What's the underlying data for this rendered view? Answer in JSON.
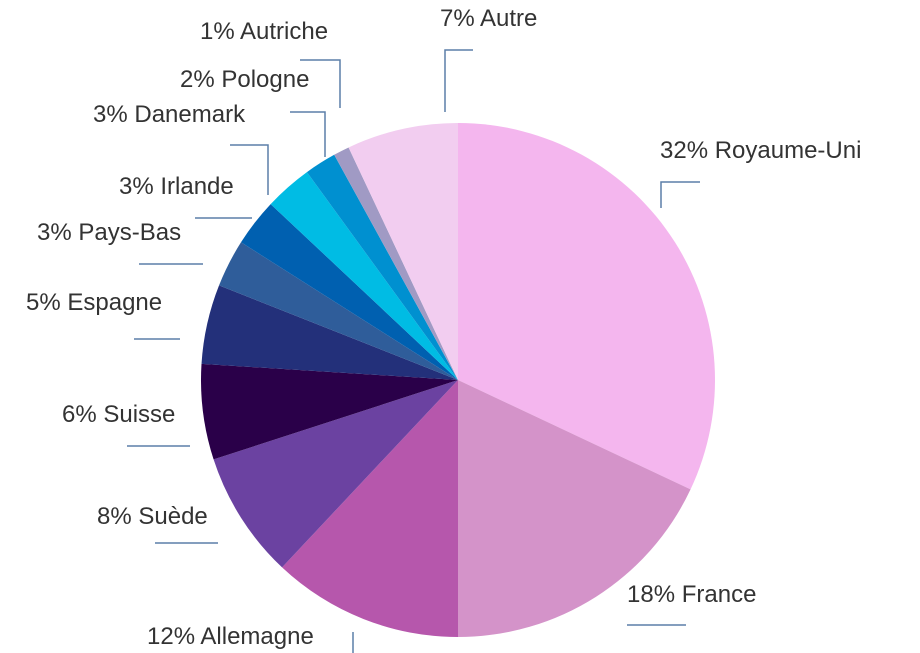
{
  "chart_data": {
    "type": "pie",
    "categories": [
      "Royaume-Uni",
      "France",
      "Allemagne",
      "Suède",
      "Suisse",
      "Espagne",
      "Pays-Bas",
      "Irlande",
      "Danemark",
      "Pologne",
      "Autriche",
      "Autre"
    ],
    "values": [
      32,
      18,
      12,
      8,
      6,
      5,
      3,
      3,
      3,
      2,
      1,
      7
    ],
    "value_labels": [
      "32%",
      "18%",
      "12%",
      "8%",
      "6%",
      "5%",
      "3%",
      "3%",
      "3%",
      "2%",
      "1%",
      "7%"
    ],
    "colors": [
      "#f4b6ee",
      "#d493c9",
      "#b657ac",
      "#6b42a1",
      "#2a0049",
      "#23307a",
      "#2f5d9a",
      "#0060b0",
      "#00bce4",
      "#0090d0",
      "#a09ac4",
      "#f2cdf0"
    ]
  }
}
